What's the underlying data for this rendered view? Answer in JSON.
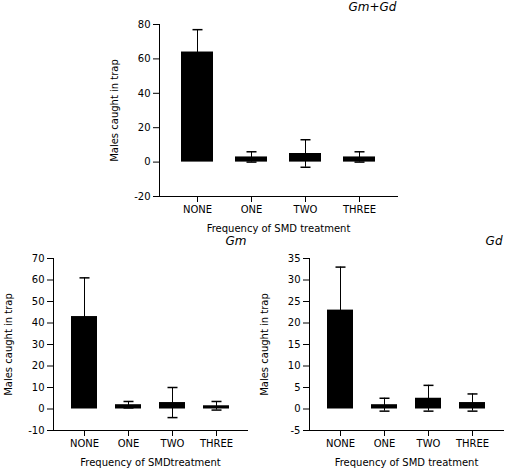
{
  "chart_data": [
    {
      "type": "bar",
      "title": "Gm+Gd",
      "categories": [
        "NONE",
        "ONE",
        "TWO",
        "THREE"
      ],
      "values": [
        64,
        3,
        5,
        3
      ],
      "errors": [
        13,
        3,
        8,
        3
      ],
      "color": "#000000",
      "xlabel": "Frequency of SMD treatment",
      "ylabel": "Males caught in trap",
      "ylim": [
        -20,
        80
      ],
      "yticks": [
        -20,
        0,
        20,
        40,
        60,
        80
      ],
      "grid": false
    },
    {
      "type": "bar",
      "title": "Gm",
      "categories": [
        "NONE",
        "ONE",
        "TWO",
        "THREE"
      ],
      "values": [
        43,
        2,
        3,
        1.5
      ],
      "errors": [
        18,
        1.5,
        7,
        2
      ],
      "color": "#000000",
      "xlabel": "Frequency of SMDtreatment",
      "ylabel": "Males caught in trap",
      "ylim": [
        -10,
        70
      ],
      "yticks": [
        -10,
        0,
        10,
        20,
        30,
        40,
        50,
        60,
        70
      ],
      "grid": false
    },
    {
      "type": "bar",
      "title": "Gd",
      "categories": [
        "NONE",
        "ONE",
        "TWO",
        "THREE"
      ],
      "values": [
        23,
        1,
        2.5,
        1.5
      ],
      "errors": [
        10,
        1.5,
        3,
        2
      ],
      "color": "#000000",
      "xlabel": "Frequency of SMD treatment",
      "ylabel": "Males caught in trap",
      "ylim": [
        -5,
        35
      ],
      "yticks": [
        -5,
        0,
        5,
        10,
        15,
        20,
        25,
        30,
        35
      ],
      "grid": false
    }
  ]
}
